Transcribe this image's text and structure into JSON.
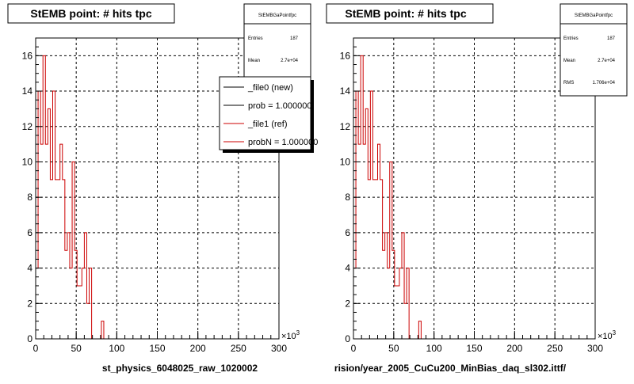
{
  "colors": {
    "background": "#ffffff",
    "frame": "#000000",
    "grid": "#000000",
    "hist_ref": "#cc0000",
    "legend_new": "#000000",
    "legend_ref": "#cc0000"
  },
  "panels": [
    {
      "title": "StEMB point: # hits tpc",
      "stats": {
        "name": "StEMBGaPointfpc",
        "rows": [
          {
            "label": "Entries",
            "value": "187"
          },
          {
            "label": "Mean",
            "value": "2.7e+04"
          }
        ]
      },
      "legend": {
        "entries": [
          {
            "label": "_file0 (new)",
            "color": "#000000"
          },
          {
            "label": "prob = 1.000000",
            "color": "#000000"
          },
          {
            "label": "_file1 (ref)",
            "color": "#cc0000"
          },
          {
            "label": "probN = 1.000000",
            "color": "#cc0000"
          }
        ]
      },
      "xlabel": "st_physics_6048025_raw_1020002",
      "exponent": "×10",
      "exponent_power": "3"
    },
    {
      "title": "StEMB point: # hits tpc",
      "stats": {
        "name": "StEMBGaPointfpc",
        "rows": [
          {
            "label": "Entries",
            "value": "187"
          },
          {
            "label": "Mean",
            "value": "2.7e+04"
          },
          {
            "label": "RMS",
            "value": "1.706e+04"
          }
        ]
      },
      "xlabel": "rision/year_2005_CuCu200_MinBias_daq_sl302.ittf/",
      "exponent": "×10",
      "exponent_power": "3"
    }
  ],
  "chart_data": [
    {
      "type": "bar",
      "title": "StEMB point: # hits tpc",
      "xlabel": "st_physics_6048025_raw_1020002",
      "ylabel": "",
      "xlim": [
        0,
        300
      ],
      "ylim": [
        0,
        17
      ],
      "x_scale": "×10^3",
      "grid": true,
      "xticks": [
        0,
        50,
        100,
        150,
        200,
        250,
        300
      ],
      "yticks": [
        0,
        2,
        4,
        6,
        8,
        10,
        12,
        14,
        16
      ],
      "bin_width": 3,
      "series": [
        {
          "name": "_file1 (ref)",
          "bin_start": 0,
          "values": [
            4,
            14,
            11,
            16,
            11,
            13,
            9,
            14,
            9,
            9,
            11,
            9,
            5,
            6,
            4,
            10,
            5,
            3,
            3,
            4,
            6,
            2,
            4,
            0,
            0,
            0,
            0,
            1
          ]
        }
      ]
    },
    {
      "type": "bar",
      "title": "StEMB point: # hits tpc",
      "xlabel": "rision/year_2005_CuCu200_MinBias_daq_sl302.ittf/",
      "ylabel": "",
      "xlim": [
        0,
        300
      ],
      "ylim": [
        0,
        17
      ],
      "x_scale": "×10^3",
      "grid": true,
      "xticks": [
        0,
        50,
        100,
        150,
        200,
        250,
        300
      ],
      "yticks": [
        0,
        2,
        4,
        6,
        8,
        10,
        12,
        14,
        16
      ],
      "bin_width": 3,
      "series": [
        {
          "bin_start": 0,
          "values": [
            4,
            14,
            11,
            16,
            11,
            13,
            9,
            14,
            9,
            9,
            11,
            9,
            5,
            6,
            4,
            10,
            5,
            3,
            3,
            4,
            6,
            2,
            4,
            0,
            0,
            0,
            0,
            1
          ]
        }
      ]
    }
  ]
}
